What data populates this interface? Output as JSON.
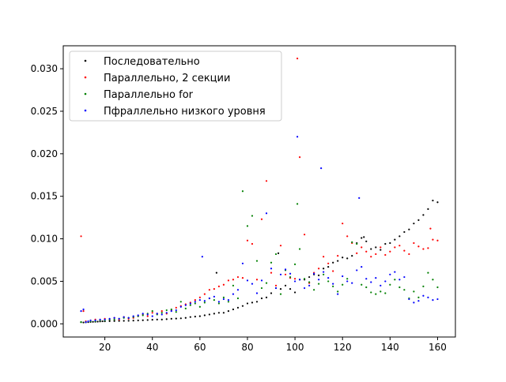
{
  "chart_data": {
    "type": "scatter",
    "title": "",
    "xlabel": "",
    "ylabel": "",
    "xlim": [
      2.5,
      167.5
    ],
    "ylim": [
      -0.00155,
      0.0327
    ],
    "xticks": [
      20,
      40,
      60,
      80,
      100,
      120,
      140,
      160
    ],
    "yticks": [
      0.0,
      0.005,
      0.01,
      0.015,
      0.02,
      0.025,
      0.03
    ],
    "ytick_labels": [
      "0.000",
      "0.005",
      "0.010",
      "0.015",
      "0.020",
      "0.025",
      "0.030"
    ],
    "grid": false,
    "legend_position": "upper-left",
    "series": [
      {
        "name": "Последовательно",
        "color": "#000000",
        "x": [
          10,
          11,
          12,
          13,
          14,
          15,
          16,
          17,
          18,
          19,
          20,
          22,
          24,
          26,
          28,
          30,
          32,
          34,
          36,
          38,
          40,
          42,
          44,
          46,
          48,
          50,
          52,
          54,
          56,
          58,
          60,
          62,
          64,
          66,
          67,
          68,
          70,
          72,
          74,
          76,
          78,
          80,
          82,
          84,
          86,
          88,
          90,
          92,
          93,
          94,
          96,
          98,
          100,
          102,
          104,
          106,
          108,
          110,
          112,
          114,
          116,
          118,
          120,
          122,
          124,
          126,
          128,
          129,
          130,
          132,
          134,
          136,
          138,
          140,
          142,
          144,
          146,
          148,
          150,
          152,
          154,
          156,
          158,
          160
        ],
        "y": [
          0.0002,
          0.00016,
          0.00018,
          0.0002,
          0.00022,
          0.00024,
          0.00025,
          0.00026,
          0.00028,
          0.0003,
          0.0003,
          0.00032,
          0.00033,
          0.00034,
          0.00035,
          0.00036,
          0.00038,
          0.0004,
          0.00042,
          0.00045,
          0.00048,
          0.0005,
          0.0005,
          0.00055,
          0.0006,
          0.00062,
          0.00065,
          0.0007,
          0.0008,
          0.00085,
          0.0009,
          0.001,
          0.0011,
          0.0012,
          0.006,
          0.0013,
          0.0013,
          0.0015,
          0.0017,
          0.0019,
          0.0021,
          0.0024,
          0.0025,
          0.0026,
          0.003,
          0.0031,
          0.0036,
          0.0042,
          0.0083,
          0.0041,
          0.0045,
          0.0041,
          0.0037,
          0.0052,
          0.0052,
          0.0055,
          0.0058,
          0.0057,
          0.0065,
          0.0067,
          0.0072,
          0.0074,
          0.0078,
          0.0077,
          0.008,
          0.0095,
          0.0101,
          0.0102,
          0.0097,
          0.0088,
          0.009,
          0.0087,
          0.0094,
          0.0095,
          0.0099,
          0.0103,
          0.0108,
          0.0111,
          0.0118,
          0.0122,
          0.0128,
          0.0135,
          0.0145,
          0.0143
        ]
      },
      {
        "name": "Параллельно, 2 секции",
        "color": "#ff0000",
        "x": [
          10,
          11,
          12,
          14,
          16,
          18,
          20,
          22,
          24,
          26,
          28,
          30,
          32,
          34,
          36,
          38,
          40,
          42,
          44,
          46,
          48,
          50,
          52,
          54,
          56,
          58,
          60,
          62,
          64,
          66,
          68,
          70,
          72,
          74,
          76,
          78,
          80,
          82,
          84,
          86,
          88,
          90,
          92,
          94,
          96,
          98,
          100,
          101,
          102,
          104,
          106,
          108,
          110,
          112,
          114,
          116,
          118,
          120,
          122,
          124,
          126,
          128,
          130,
          132,
          134,
          136,
          138,
          140,
          142,
          144,
          146,
          148,
          150,
          152,
          154,
          156,
          157,
          158,
          160
        ],
        "y": [
          0.0103,
          0.0015,
          0.0003,
          0.0004,
          0.0005,
          0.0004,
          0.0006,
          0.0005,
          0.0007,
          0.0005,
          0.0008,
          0.0006,
          0.0007,
          0.0009,
          0.0011,
          0.0009,
          0.0013,
          0.0012,
          0.0015,
          0.0012,
          0.0016,
          0.0019,
          0.0021,
          0.0023,
          0.0025,
          0.0028,
          0.0031,
          0.0035,
          0.004,
          0.0041,
          0.0044,
          0.0046,
          0.0051,
          0.0052,
          0.0055,
          0.0054,
          0.0098,
          0.0094,
          0.0052,
          0.0123,
          0.0168,
          0.006,
          0.0045,
          0.0092,
          0.0058,
          0.0054,
          0.0053,
          0.0312,
          0.0196,
          0.0105,
          0.0048,
          0.006,
          0.0065,
          0.0079,
          0.0071,
          0.0062,
          0.008,
          0.0118,
          0.0103,
          0.0095,
          0.0083,
          0.009,
          0.0085,
          0.0079,
          0.0082,
          0.009,
          0.0081,
          0.0085,
          0.009,
          0.0092,
          0.0086,
          0.0082,
          0.0095,
          0.0091,
          0.0088,
          0.0089,
          0.0112,
          0.0099,
          0.0098
        ]
      },
      {
        "name": "Параллельно for",
        "color": "#008000",
        "x": [
          10,
          12,
          14,
          16,
          18,
          20,
          22,
          24,
          26,
          28,
          30,
          32,
          34,
          36,
          38,
          40,
          42,
          44,
          46,
          48,
          50,
          52,
          54,
          56,
          58,
          60,
          62,
          64,
          66,
          68,
          70,
          72,
          74,
          76,
          78,
          80,
          82,
          84,
          86,
          88,
          90,
          92,
          94,
          96,
          98,
          100,
          101,
          102,
          104,
          106,
          108,
          110,
          112,
          114,
          116,
          118,
          120,
          122,
          124,
          126,
          128,
          130,
          132,
          134,
          136,
          138,
          140,
          142,
          144,
          146,
          148,
          150,
          152,
          154,
          156,
          158,
          160
        ],
        "y": [
          0.0002,
          0.0002,
          0.0003,
          0.0003,
          0.0004,
          0.0004,
          0.0005,
          0.0005,
          0.0006,
          0.0007,
          0.0007,
          0.0008,
          0.0009,
          0.001,
          0.0012,
          0.0015,
          0.0011,
          0.0013,
          0.0016,
          0.0017,
          0.0014,
          0.0026,
          0.0018,
          0.0022,
          0.0024,
          0.002,
          0.0025,
          0.003,
          0.0028,
          0.0024,
          0.0031,
          0.0026,
          0.0045,
          0.003,
          0.0156,
          0.0115,
          0.0127,
          0.0074,
          0.0042,
          0.0048,
          0.0072,
          0.0082,
          0.0035,
          0.0063,
          0.0055,
          0.007,
          0.0141,
          0.0088,
          0.0053,
          0.0049,
          0.004,
          0.0047,
          0.0058,
          0.005,
          0.0044,
          0.0038,
          0.0046,
          0.0053,
          0.0096,
          0.0094,
          0.0046,
          0.0043,
          0.0037,
          0.0035,
          0.0038,
          0.0036,
          0.0046,
          0.0052,
          0.0043,
          0.004,
          0.003,
          0.0038,
          0.0031,
          0.0044,
          0.006,
          0.0052,
          0.0043
        ]
      },
      {
        "name": "Пфраллельно низкого уровня",
        "color": "#0000ff",
        "x": [
          10,
          11,
          12,
          13,
          14,
          16,
          18,
          20,
          22,
          24,
          26,
          28,
          30,
          32,
          34,
          36,
          38,
          40,
          42,
          44,
          46,
          48,
          50,
          52,
          54,
          56,
          58,
          60,
          61,
          62,
          64,
          66,
          68,
          70,
          72,
          74,
          76,
          78,
          80,
          82,
          84,
          86,
          88,
          90,
          92,
          94,
          96,
          98,
          100,
          101,
          102,
          104,
          106,
          108,
          110,
          111,
          112,
          114,
          116,
          118,
          120,
          122,
          124,
          126,
          127,
          128,
          130,
          132,
          134,
          136,
          138,
          140,
          142,
          144,
          146,
          148,
          150,
          152,
          154,
          156,
          158,
          160
        ],
        "y": [
          0.0015,
          0.0017,
          0.0002,
          0.0003,
          0.0004,
          0.0004,
          0.0005,
          0.0005,
          0.0006,
          0.0007,
          0.0006,
          0.0008,
          0.0007,
          0.0009,
          0.001,
          0.0012,
          0.0011,
          0.0009,
          0.0012,
          0.0011,
          0.0013,
          0.0015,
          0.0016,
          0.002,
          0.0022,
          0.0024,
          0.0026,
          0.0028,
          0.0079,
          0.0027,
          0.003,
          0.0032,
          0.0026,
          0.0029,
          0.0028,
          0.0035,
          0.004,
          0.0071,
          0.0051,
          0.0047,
          0.0036,
          0.0051,
          0.013,
          0.0065,
          0.0042,
          0.0058,
          0.0064,
          0.0059,
          0.005,
          0.022,
          0.0052,
          0.0042,
          0.0045,
          0.0059,
          0.0052,
          0.0183,
          0.0061,
          0.0054,
          0.0047,
          0.0035,
          0.0056,
          0.005,
          0.0048,
          0.0063,
          0.0148,
          0.0067,
          0.0053,
          0.0049,
          0.0054,
          0.0045,
          0.005,
          0.0058,
          0.0061,
          0.0052,
          0.0055,
          0.0029,
          0.0025,
          0.0027,
          0.0033,
          0.0031,
          0.0028,
          0.0029
        ]
      }
    ]
  }
}
